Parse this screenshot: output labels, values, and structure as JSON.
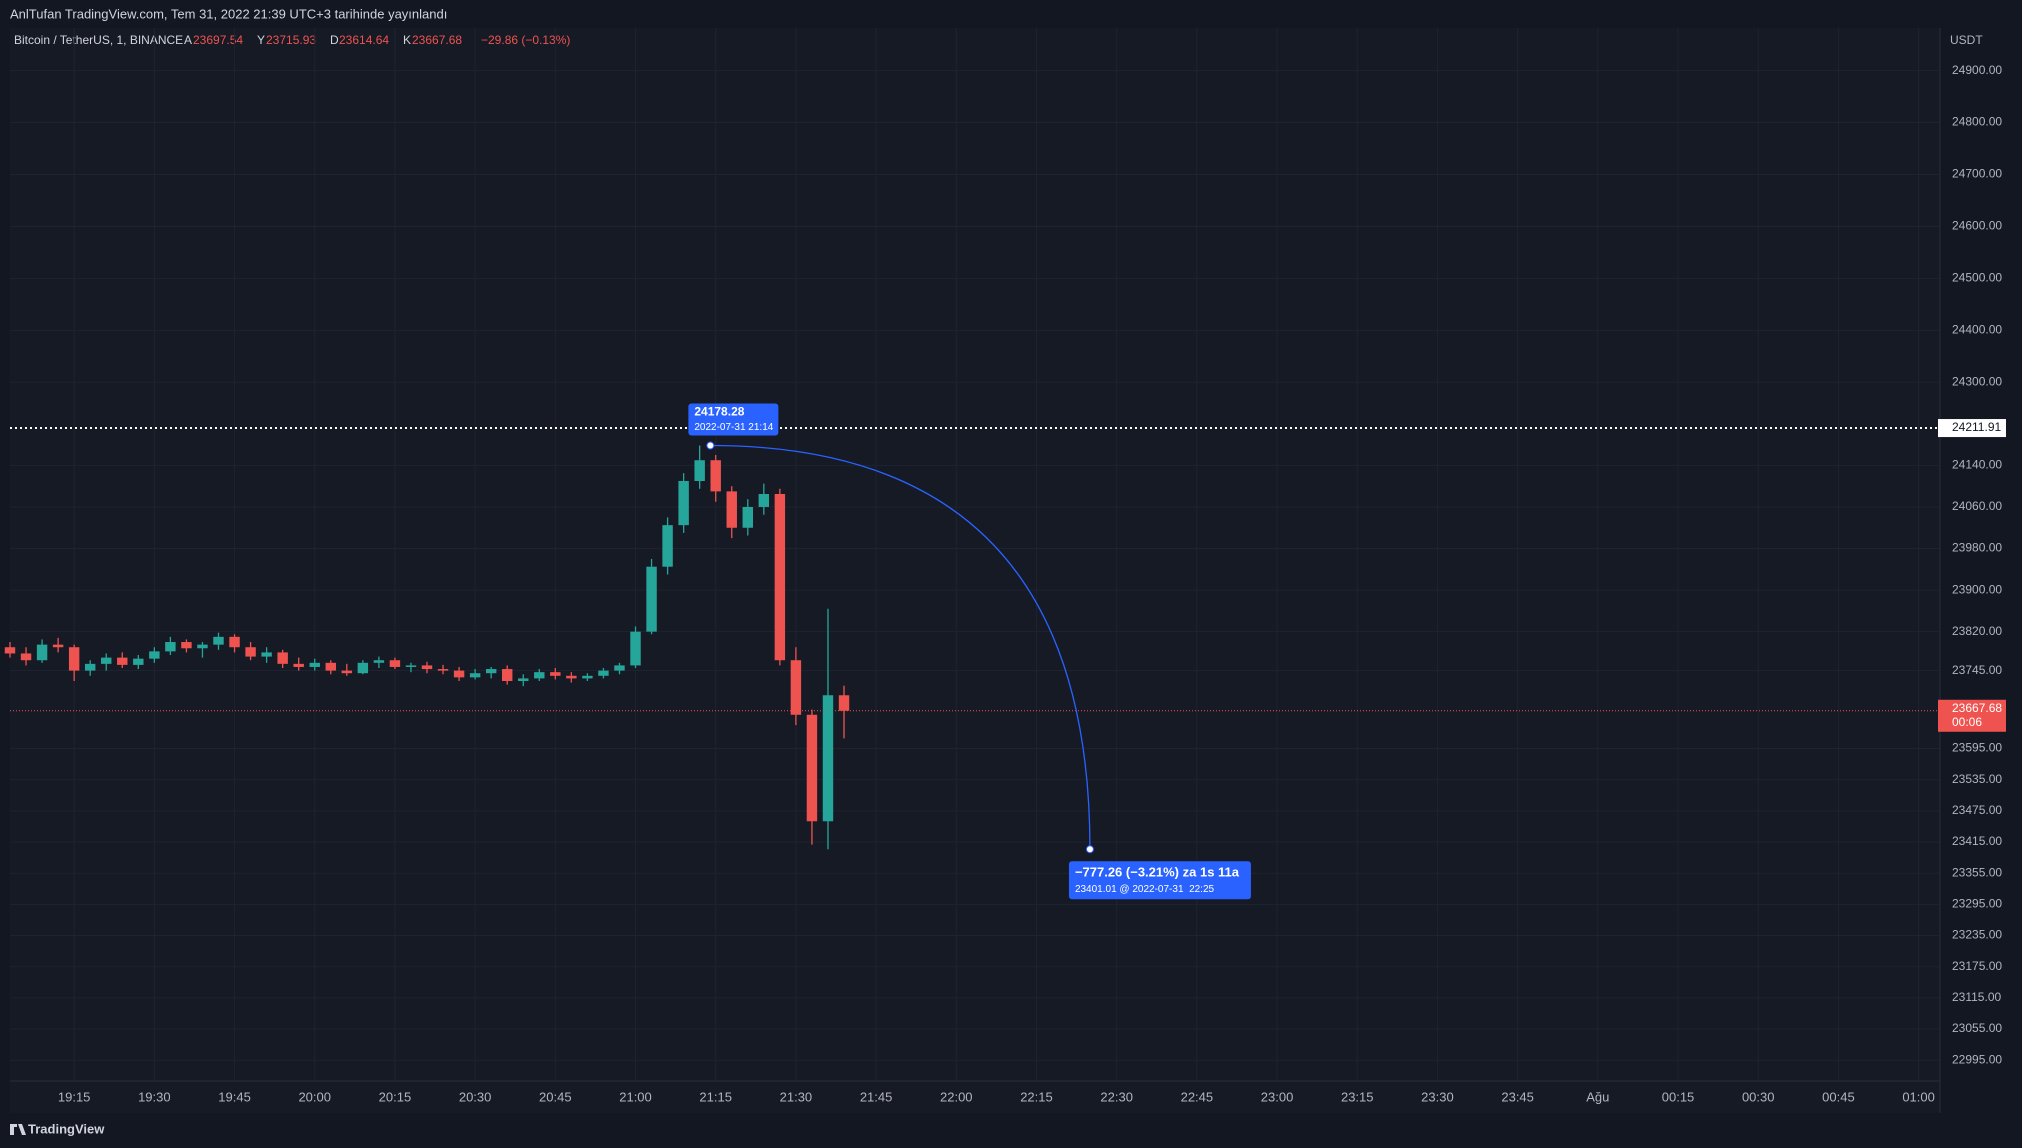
{
  "header": "AnlTufan TradingView.com, Tem 31, 2022 21:39 UTC+3 tarihinde yayınlandı",
  "footer": "TradingView",
  "chart_data": {
    "type": "candlestick",
    "symbol": "Bitcoin / TetherUS, 1, BINANCE",
    "ohlc_legend": [
      {
        "key": "A",
        "value": 23697.54
      },
      {
        "key": "Y",
        "value": 23715.93
      },
      {
        "key": "D",
        "value": 23614.64
      },
      {
        "key": "K",
        "value": 23667.68
      }
    ],
    "change": "−29.86 (−0.13%)",
    "y_axis_title": "USDT",
    "up_color": "#26a69a",
    "down_color": "#ef5350",
    "x": [
      "19:03",
      "19:06",
      "19:09",
      "19:12",
      "19:15",
      "19:18",
      "19:21",
      "19:24",
      "19:27",
      "19:30",
      "19:33",
      "19:36",
      "19:39",
      "19:42",
      "19:45",
      "19:48",
      "19:51",
      "19:54",
      "19:57",
      "20:00",
      "20:03",
      "20:06",
      "20:09",
      "20:12",
      "20:15",
      "20:18",
      "20:21",
      "20:24",
      "20:27",
      "20:30",
      "20:33",
      "20:36",
      "20:39",
      "20:42",
      "20:45",
      "20:48",
      "20:51",
      "20:54",
      "20:57",
      "21:00",
      "21:03",
      "21:06",
      "21:09",
      "21:12",
      "21:15",
      "21:18",
      "21:21",
      "21:24",
      "21:27",
      "21:30",
      "21:33",
      "21:36",
      "21:39"
    ],
    "open": [
      23790,
      23778,
      23765,
      23795,
      23790,
      23745,
      23758,
      23770,
      23756,
      23768,
      23782,
      23800,
      23788,
      23795,
      23810,
      23790,
      23772,
      23780,
      23758,
      23752,
      23760,
      23745,
      23740,
      23760,
      23765,
      23752,
      23755,
      23748,
      23745,
      23732,
      23740,
      23748,
      23725,
      23730,
      23742,
      23735,
      23730,
      23735,
      23745,
      23755,
      23820,
      23945,
      24025,
      24110,
      24150,
      24090,
      24020,
      24060,
      24085,
      23765,
      23660,
      23455,
      23697.54
    ],
    "high": [
      23800,
      23790,
      23805,
      23808,
      23795,
      23765,
      23778,
      23780,
      23775,
      23790,
      23810,
      23805,
      23800,
      23818,
      23815,
      23800,
      23790,
      23785,
      23770,
      23768,
      23765,
      23758,
      23765,
      23772,
      23770,
      23760,
      23762,
      23756,
      23752,
      23748,
      23752,
      23755,
      23738,
      23748,
      23750,
      23742,
      23740,
      23750,
      23760,
      23830,
      23960,
      24040,
      24125,
      24178.28,
      24160,
      24100,
      24075,
      24105,
      24095,
      23790,
      23670,
      23864,
      23715.93
    ],
    "low": [
      23770,
      23755,
      23760,
      23780,
      23725,
      23735,
      23745,
      23750,
      23748,
      23760,
      23775,
      23780,
      23770,
      23785,
      23780,
      23765,
      23760,
      23750,
      23745,
      23745,
      23738,
      23735,
      23738,
      23750,
      23748,
      23742,
      23740,
      23738,
      23725,
      23728,
      23730,
      23718,
      23715,
      23725,
      23728,
      23722,
      23725,
      23730,
      23738,
      23750,
      23815,
      23930,
      24010,
      24095,
      24070,
      24000,
      24005,
      24045,
      23755,
      23640,
      23410,
      23401.01,
      23614.64
    ],
    "close": [
      23778,
      23765,
      23795,
      23790,
      23745,
      23758,
      23770,
      23756,
      23768,
      23782,
      23800,
      23788,
      23795,
      23810,
      23790,
      23772,
      23780,
      23758,
      23752,
      23760,
      23745,
      23740,
      23760,
      23765,
      23752,
      23755,
      23748,
      23745,
      23732,
      23740,
      23748,
      23725,
      23730,
      23742,
      23735,
      23730,
      23735,
      23745,
      23755,
      23820,
      23945,
      24025,
      24110,
      24150,
      24090,
      24020,
      24060,
      24085,
      23765,
      23660,
      23455,
      23697.54,
      23667.68
    ],
    "xlim": [
      "19:03",
      "01:04"
    ],
    "ylim": [
      22955,
      24982
    ],
    "yticks": [
      {
        "value": 24900,
        "label": "24900.00"
      },
      {
        "value": 24800,
        "label": "24800.00"
      },
      {
        "value": 24700,
        "label": "24700.00"
      },
      {
        "value": 24600,
        "label": "24600.00"
      },
      {
        "value": 24500,
        "label": "24500.00"
      },
      {
        "value": 24400,
        "label": "24400.00"
      },
      {
        "value": 24300,
        "label": "24300.00"
      },
      {
        "value": 24140,
        "label": "24140.00"
      },
      {
        "value": 24060,
        "label": "24060.00"
      },
      {
        "value": 23980,
        "label": "23980.00"
      },
      {
        "value": 23900,
        "label": "23900.00"
      },
      {
        "value": 23820,
        "label": "23820.00"
      },
      {
        "value": 23745,
        "label": "23745.00"
      },
      {
        "value": 23595,
        "label": "23595.00"
      },
      {
        "value": 23535,
        "label": "23535.00"
      },
      {
        "value": 23475,
        "label": "23475.00"
      },
      {
        "value": 23415,
        "label": "23415.00"
      },
      {
        "value": 23355,
        "label": "23355.00"
      },
      {
        "value": 23295,
        "label": "23295.00"
      },
      {
        "value": 23235,
        "label": "23235.00"
      },
      {
        "value": 23175,
        "label": "23175.00"
      },
      {
        "value": 23115,
        "label": "23115.00"
      },
      {
        "value": 23055,
        "label": "23055.00"
      },
      {
        "value": 22995,
        "label": "22995.00"
      }
    ],
    "xticks": [
      "19:15",
      "19:30",
      "19:45",
      "20:00",
      "20:15",
      "20:30",
      "20:45",
      "21:00",
      "21:15",
      "21:30",
      "21:45",
      "22:00",
      "22:15",
      "22:30",
      "22:45",
      "23:00",
      "23:15",
      "23:30",
      "23:45",
      {
        "value": "00:00",
        "label": "Ağu"
      },
      "00:15",
      "00:30",
      "00:45",
      "01:00"
    ],
    "grid": true,
    "price_line": {
      "price": 24211.91,
      "color": "#ffffff"
    },
    "last_price": {
      "price": 23667.68,
      "countdown": "00:06",
      "color": "#ef5350"
    },
    "measure": {
      "color": "#2962ff",
      "start": {
        "time": "21:14",
        "price": 24178.28,
        "date_label": "2022-07-31 21:14"
      },
      "end": {
        "time": "22:25",
        "price": 23401.01,
        "text": "−777.26 (−3.21%) za 1s 11a",
        "detail": "23401.01 @ 2022-07-31  22:25"
      }
    }
  }
}
